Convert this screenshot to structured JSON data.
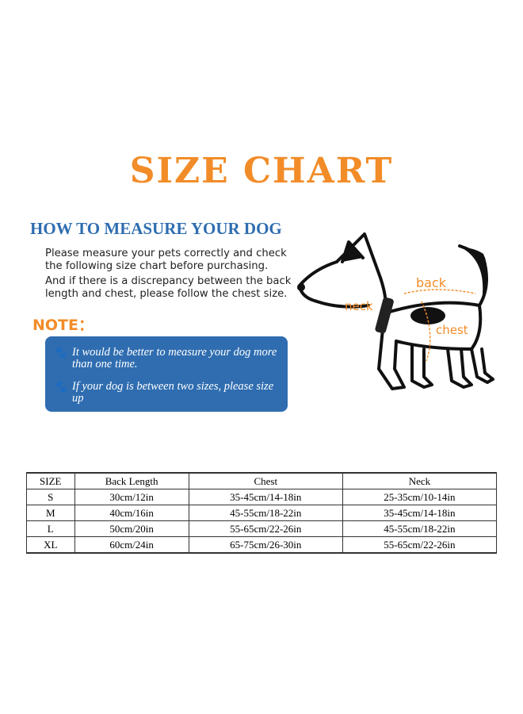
{
  "title": "SIZE CHART",
  "how_to": {
    "heading": "HOW TO MEASURE YOUR DOG",
    "para1": "Please measure your pets correctly and check the following size chart before purchasing.",
    "para2": "And if there is a discrepancy between the back length and chest, please follow the chest size."
  },
  "note": {
    "label": "NOTE：",
    "tips": [
      "It would be better to measure your dog more than one time.",
      "If your dog is between two sizes, please size up"
    ]
  },
  "diagram": {
    "back": "back",
    "neck": "neck",
    "chest": "chest"
  },
  "colors": {
    "accent": "#f28c28",
    "blue": "#2f6db0"
  },
  "table": {
    "headers": [
      "SIZE",
      "Back Length",
      "Chest",
      "Neck"
    ],
    "rows": [
      [
        "S",
        "30cm/12in",
        "35-45cm/14-18in",
        "25-35cm/10-14in"
      ],
      [
        "M",
        "40cm/16in",
        "45-55cm/18-22in",
        "35-45cm/14-18in"
      ],
      [
        "L",
        "50cm/20in",
        "55-65cm/22-26in",
        "45-55cm/18-22in"
      ],
      [
        "XL",
        "60cm/24in",
        "65-75cm/26-30in",
        "55-65cm/22-26in"
      ]
    ]
  }
}
